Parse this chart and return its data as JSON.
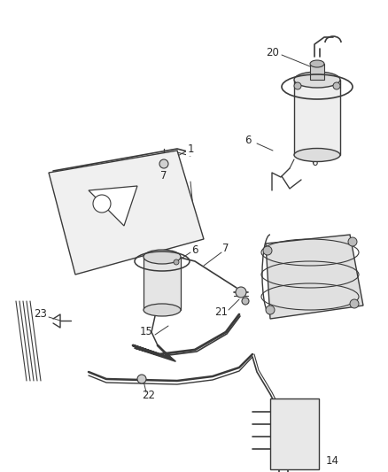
{
  "bg": "#f5f5f5",
  "lc": "#3a3a3a",
  "tc": "#2a2a2a",
  "fs": 8.5,
  "fw": 4.39,
  "fh": 5.33,
  "dpi": 100
}
